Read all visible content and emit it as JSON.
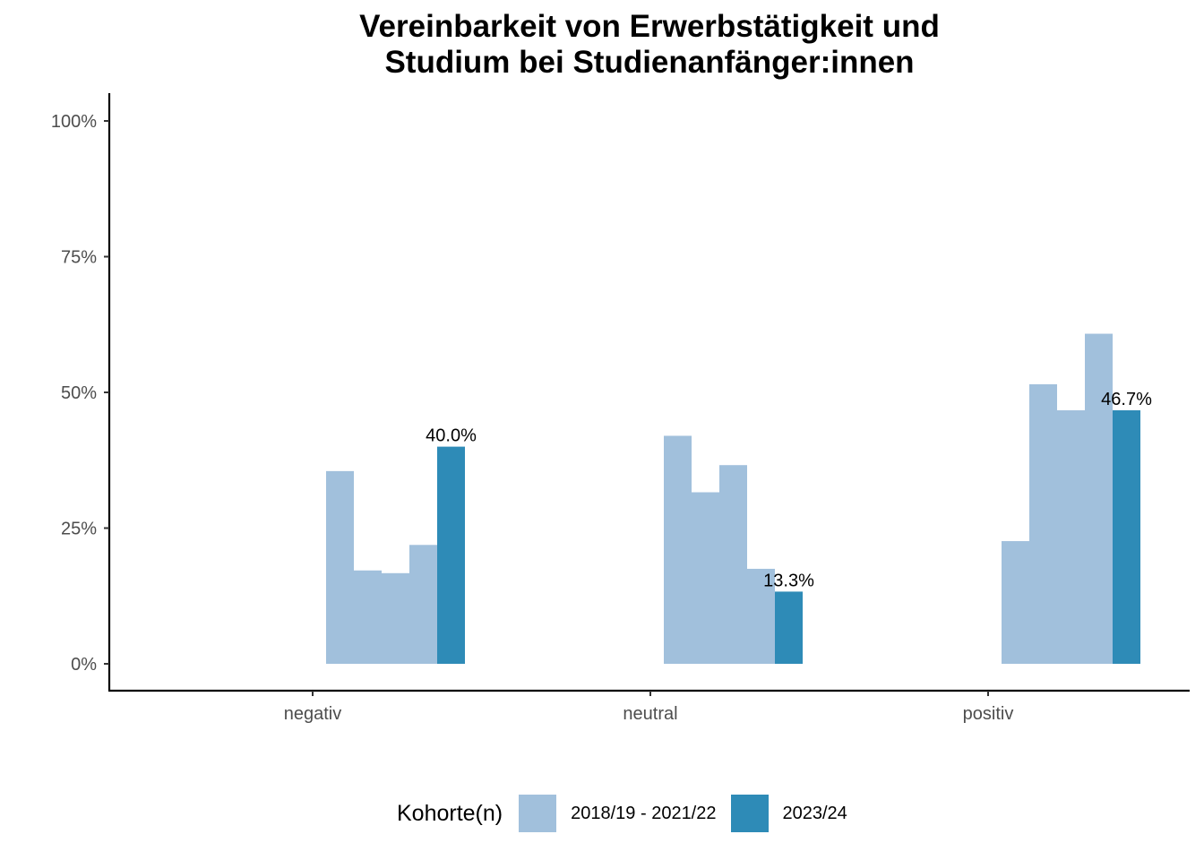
{
  "title_lines": [
    "Vereinbarkeit von Erwerbstätigkeit und",
    "Studium bei Studienanfänger:innen"
  ],
  "legend": {
    "title": "Kohorte(n)",
    "items": [
      {
        "label": "2018/19 - 2021/22",
        "color": "#a1c0dc"
      },
      {
        "label": "2023/24",
        "color": "#2e8bb7"
      }
    ]
  },
  "chart_data": {
    "type": "bar",
    "categories": [
      "negativ",
      "neutral",
      "positiv"
    ],
    "y_ticks": [
      "0%",
      "25%",
      "50%",
      "75%",
      "100%"
    ],
    "ylim": [
      0,
      1
    ],
    "grid": false,
    "legend_position": "bottom",
    "series": [
      {
        "name": "2018/19 - 2021/22",
        "color": "#a1c0dc",
        "values_per_category": [
          [
            0.355,
            0.172,
            0.167,
            0.219
          ],
          [
            0.42,
            0.316,
            0.366,
            0.175
          ],
          [
            0.226,
            0.515,
            0.467,
            0.608
          ]
        ]
      },
      {
        "name": "2023/24",
        "color": "#2e8bb7",
        "values": [
          0.4,
          0.133,
          0.467
        ],
        "data_labels": [
          "40.0%",
          "13.3%",
          "46.7%"
        ]
      }
    ]
  }
}
